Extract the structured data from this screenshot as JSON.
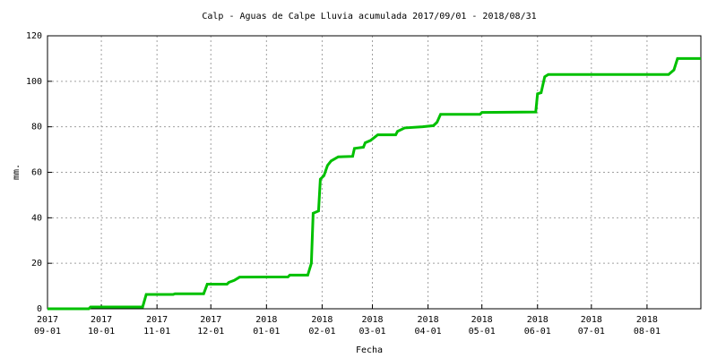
{
  "chart_data": {
    "type": "line",
    "title": "Calp - Aguas de Calpe Lluvia acumulada 2017/09/01 - 2018/08/31",
    "x_label": "Fecha",
    "y_label": "mm.",
    "x": [
      "2017-09-01",
      "2017-09-24",
      "2017-09-25",
      "2017-10-24",
      "2017-10-26",
      "2017-11-10",
      "2017-11-11",
      "2017-11-27",
      "2017-11-29",
      "2017-12-10",
      "2017-12-11",
      "2017-12-14",
      "2017-12-17",
      "2018-01-13",
      "2018-01-14",
      "2018-01-24",
      "2018-01-26",
      "2018-01-27",
      "2018-01-30",
      "2018-01-31",
      "2018-02-02",
      "2018-02-04",
      "2018-02-06",
      "2018-02-10",
      "2018-02-18",
      "2018-02-19",
      "2018-02-24",
      "2018-02-25",
      "2018-02-28",
      "2018-03-04",
      "2018-03-14",
      "2018-03-15",
      "2018-03-19",
      "2018-03-29",
      "2018-04-04",
      "2018-04-06",
      "2018-04-08",
      "2018-04-30",
      "2018-05-01",
      "2018-05-31",
      "2018-06-01",
      "2018-06-03",
      "2018-06-05",
      "2018-06-07",
      "2018-08-13",
      "2018-08-16",
      "2018-08-18",
      "2018-08-31"
    ],
    "series": [
      {
        "name": "Lluvia acumulada",
        "color": "#00c000",
        "values": [
          0,
          0,
          0.8,
          0.8,
          6.3,
          6.3,
          6.6,
          6.6,
          10.8,
          10.8,
          11.6,
          12.5,
          13.9,
          14,
          14.8,
          14.8,
          20,
          42,
          43,
          57,
          58.5,
          63,
          65,
          66.8,
          67,
          70.5,
          71,
          73,
          74,
          76.5,
          76.5,
          78,
          79.5,
          80,
          80.5,
          82,
          85.5,
          85.5,
          86.3,
          86.5,
          94.5,
          95,
          102,
          103,
          103,
          105,
          110,
          110
        ]
      }
    ],
    "xlim": [
      "2017-09-01",
      "2018-08-31"
    ],
    "xticks": [
      {
        "value": "2017-09-01",
        "label": [
          "2017",
          "09-01"
        ]
      },
      {
        "value": "2017-10-01",
        "label": [
          "2017",
          "10-01"
        ]
      },
      {
        "value": "2017-11-01",
        "label": [
          "2017",
          "11-01"
        ]
      },
      {
        "value": "2017-12-01",
        "label": [
          "2017",
          "12-01"
        ]
      },
      {
        "value": "2018-01-01",
        "label": [
          "2018",
          "01-01"
        ]
      },
      {
        "value": "2018-02-01",
        "label": [
          "2018",
          "02-01"
        ]
      },
      {
        "value": "2018-03-01",
        "label": [
          "2018",
          "03-01"
        ]
      },
      {
        "value": "2018-04-01",
        "label": [
          "2018",
          "04-01"
        ]
      },
      {
        "value": "2018-05-01",
        "label": [
          "2018",
          "05-01"
        ]
      },
      {
        "value": "2018-06-01",
        "label": [
          "2018",
          "06-01"
        ]
      },
      {
        "value": "2018-07-01",
        "label": [
          "2018",
          "07-01"
        ]
      },
      {
        "value": "2018-08-01",
        "label": [
          "2018",
          "08-01"
        ]
      }
    ],
    "ylim": [
      0,
      120
    ],
    "yticks": [
      0,
      20,
      40,
      60,
      80,
      100,
      120
    ],
    "grid": true
  }
}
